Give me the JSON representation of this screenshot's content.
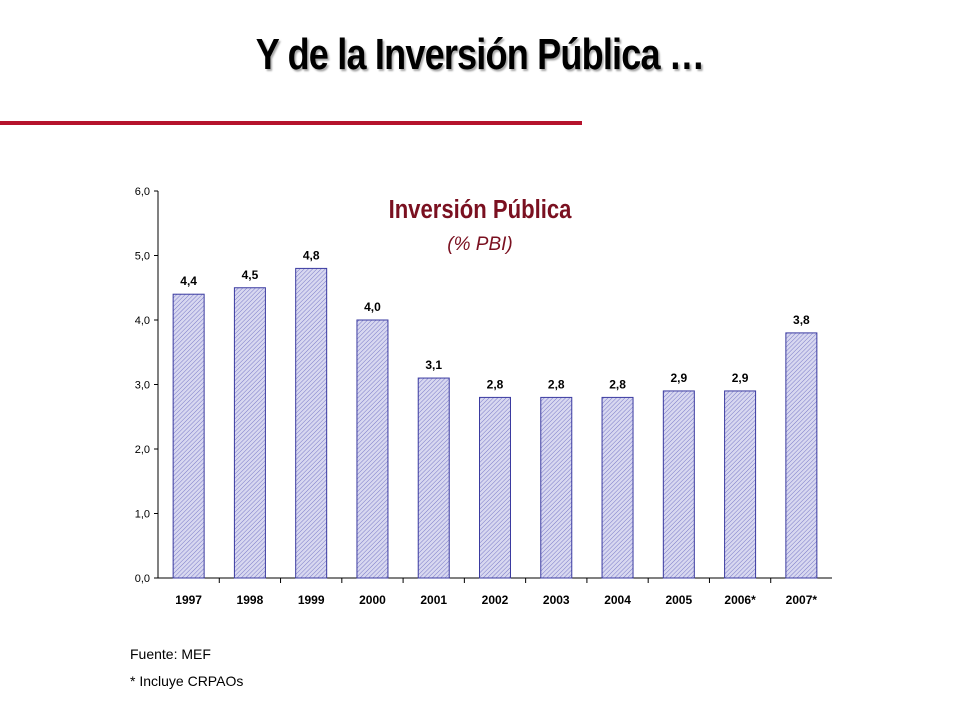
{
  "slide": {
    "title": "Y de la Inversión Pública …",
    "source": "Fuente: MEF",
    "note": "* Incluye CRPAOs",
    "accent_color": "#b5122c"
  },
  "chart_data": {
    "type": "bar",
    "title": "Inversión Pública",
    "subtitle": "(% PBI)",
    "categories": [
      "1997",
      "1998",
      "1999",
      "2000",
      "2001",
      "2002",
      "2003",
      "2004",
      "2005",
      "2006*",
      "2007*"
    ],
    "values": [
      4.4,
      4.5,
      4.8,
      4.0,
      3.1,
      2.8,
      2.8,
      2.8,
      2.9,
      2.9,
      3.8
    ],
    "value_labels": [
      "4,4",
      "4,5",
      "4,8",
      "4,0",
      "3,1",
      "2,8",
      "2,8",
      "2,8",
      "2,9",
      "2,9",
      "3,8"
    ],
    "yticks": [
      "0,0",
      "1,0",
      "2,0",
      "3,0",
      "4,0",
      "5,0",
      "6,0"
    ],
    "ylim": [
      0,
      6
    ],
    "grid": false,
    "bar_fill": "#d8d8f0",
    "bar_stroke": "#3a3aa0"
  }
}
